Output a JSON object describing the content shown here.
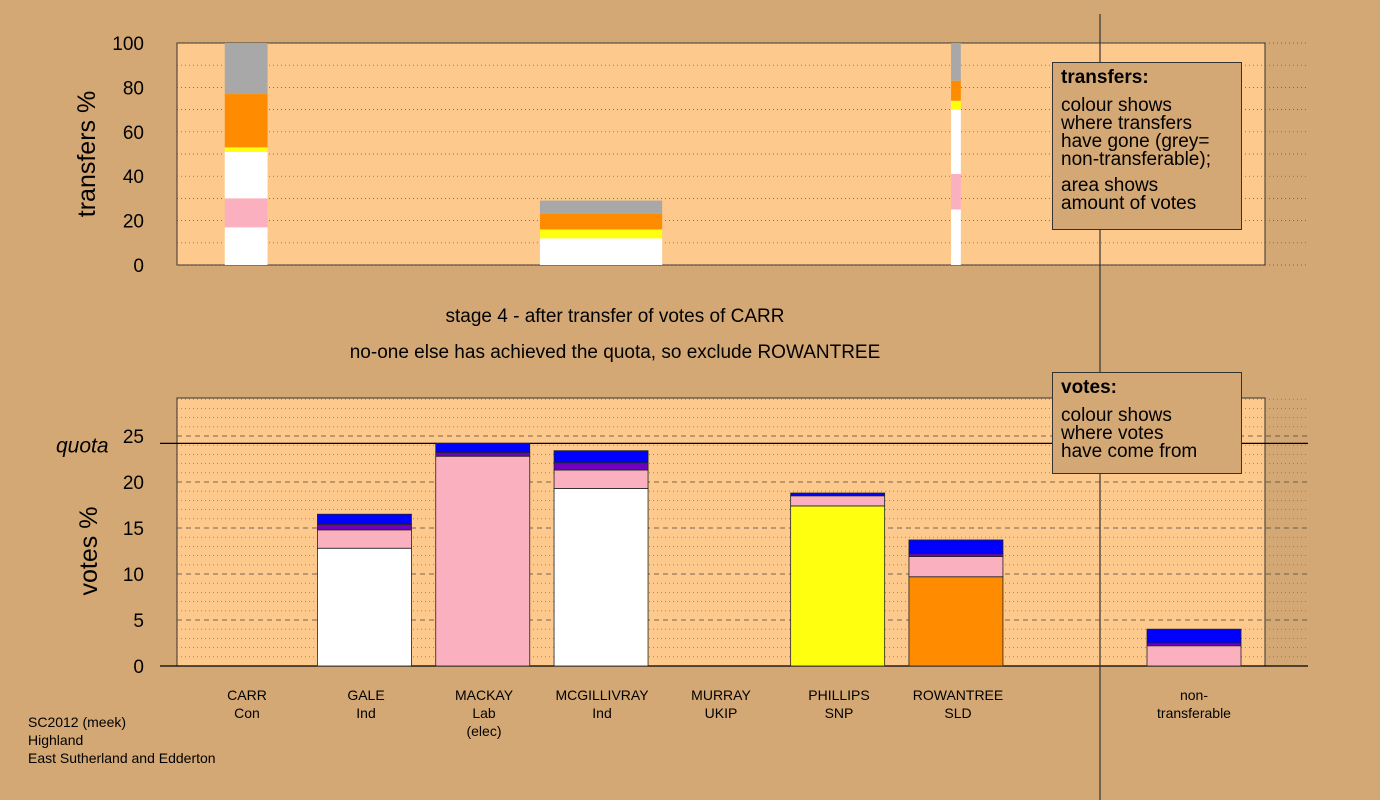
{
  "colors": {
    "background": "#d4a874",
    "plot_background": "#fdc98c",
    "white": "#ffffff",
    "pink": "#fbb0c0",
    "yellow": "#ffff10",
    "orange": "#ff8c00",
    "purple": "#7000c0",
    "blue": "#0000ff",
    "grey": "#a8a8a8"
  },
  "captions": {
    "stage": "stage 4 - after transfer of votes of CARR",
    "decision": "no-one else has achieved the quota, so exclude ROWANTREE"
  },
  "credit": {
    "line1": "SC2012 (meek)",
    "line2": "Highland",
    "line3": "East Sutherland and Edderton"
  },
  "legend_transfers": {
    "title": "transfers:",
    "lines1": [
      "colour shows",
      "where transfers",
      "have gone (grey=",
      "non-transferable);"
    ],
    "lines2": [
      "area shows",
      "amount of votes"
    ]
  },
  "legend_votes": {
    "title": "votes:",
    "lines": [
      "colour shows",
      "where votes",
      "have come from"
    ]
  },
  "candidates": [
    {
      "name": "CARR",
      "party": "Con",
      "note": ""
    },
    {
      "name": "GALE",
      "party": "Ind",
      "note": ""
    },
    {
      "name": "MACKAY",
      "party": "Lab",
      "note": "(elec)"
    },
    {
      "name": "MCGILLIVRAY",
      "party": "Ind",
      "note": ""
    },
    {
      "name": "MURRAY",
      "party": "UKIP",
      "note": ""
    },
    {
      "name": "PHILLIPS",
      "party": "SNP",
      "note": ""
    },
    {
      "name": "ROWANTREE",
      "party": "SLD",
      "note": ""
    },
    {
      "name": "non-",
      "party": "transferable",
      "note": ""
    }
  ],
  "chart_data": [
    {
      "type": "bar",
      "stacked": true,
      "ylabel": "transfers %",
      "ylim": [
        0,
        100
      ],
      "yticks": [
        0,
        20,
        40,
        60,
        80,
        100
      ],
      "categories": [
        "CARR",
        "GALE",
        "MACKAY",
        "MCGILLIVRAY",
        "MURRAY",
        "PHILLIPS",
        "ROWANTREE",
        "non-transferable"
      ],
      "bars": [
        {
          "candidate": "CARR",
          "width_share": 0.35,
          "segments": [
            {
              "color": "white",
              "from": 0,
              "to": 17
            },
            {
              "color": "pink",
              "from": 17,
              "to": 30
            },
            {
              "color": "white",
              "from": 30,
              "to": 51
            },
            {
              "color": "yellow",
              "from": 51,
              "to": 53
            },
            {
              "color": "orange",
              "from": 53,
              "to": 77
            },
            {
              "color": "grey",
              "from": 77,
              "to": 100
            }
          ]
        },
        {
          "candidate": "MCGILLIVRAY",
          "width_share": 1.0,
          "segments": [
            {
              "color": "white",
              "from": 0,
              "to": 12
            },
            {
              "color": "yellow",
              "from": 12,
              "to": 16
            },
            {
              "color": "orange",
              "from": 16,
              "to": 23
            },
            {
              "color": "grey",
              "from": 23,
              "to": 29
            }
          ]
        },
        {
          "candidate": "ROWANTREE",
          "width_share": 0.08,
          "segments": [
            {
              "color": "white",
              "from": 0,
              "to": 25
            },
            {
              "color": "pink",
              "from": 25,
              "to": 41
            },
            {
              "color": "white",
              "from": 41,
              "to": 70
            },
            {
              "color": "yellow",
              "from": 70,
              "to": 74
            },
            {
              "color": "orange",
              "from": 74,
              "to": 83
            },
            {
              "color": "grey",
              "from": 83,
              "to": 100
            }
          ]
        }
      ]
    },
    {
      "type": "bar",
      "stacked": true,
      "ylabel": "votes %",
      "ylim": [
        0,
        25
      ],
      "yticks": [
        0,
        5,
        10,
        15,
        20,
        25
      ],
      "quota": 24.2,
      "quota_label": "quota",
      "categories": [
        "CARR",
        "GALE",
        "MACKAY",
        "MCGILLIVRAY",
        "MURRAY",
        "PHILLIPS",
        "ROWANTREE",
        "non-transferable"
      ],
      "bars": [
        {
          "candidate": "CARR",
          "segments": []
        },
        {
          "candidate": "GALE",
          "segments": [
            {
              "color": "white",
              "from": 0,
              "to": 12.8
            },
            {
              "color": "pink",
              "from": 12.8,
              "to": 14.8
            },
            {
              "color": "purple",
              "from": 14.8,
              "to": 15.4
            },
            {
              "color": "blue",
              "from": 15.4,
              "to": 16.5
            }
          ]
        },
        {
          "candidate": "MACKAY",
          "segments": [
            {
              "color": "pink",
              "from": 0,
              "to": 22.8
            },
            {
              "color": "purple",
              "from": 22.8,
              "to": 23.2
            },
            {
              "color": "blue",
              "from": 23.2,
              "to": 24.2
            }
          ]
        },
        {
          "candidate": "MCGILLIVRAY",
          "segments": [
            {
              "color": "white",
              "from": 0,
              "to": 19.3
            },
            {
              "color": "pink",
              "from": 19.3,
              "to": 21.3
            },
            {
              "color": "purple",
              "from": 21.3,
              "to": 22.1
            },
            {
              "color": "blue",
              "from": 22.1,
              "to": 23.4
            }
          ]
        },
        {
          "candidate": "MURRAY",
          "segments": []
        },
        {
          "candidate": "PHILLIPS",
          "segments": [
            {
              "color": "yellow",
              "from": 0,
              "to": 17.4
            },
            {
              "color": "pink",
              "from": 17.4,
              "to": 18.5
            },
            {
              "color": "blue",
              "from": 18.5,
              "to": 18.8
            }
          ]
        },
        {
          "candidate": "ROWANTREE",
          "segments": [
            {
              "color": "orange",
              "from": 0,
              "to": 9.7
            },
            {
              "color": "pink",
              "from": 9.7,
              "to": 11.9
            },
            {
              "color": "purple",
              "from": 11.9,
              "to": 12.2
            },
            {
              "color": "blue",
              "from": 12.2,
              "to": 13.7
            }
          ]
        },
        {
          "candidate": "non-transferable",
          "segments": [
            {
              "color": "pink",
              "from": 0,
              "to": 2.2
            },
            {
              "color": "purple",
              "from": 2.2,
              "to": 2.5
            },
            {
              "color": "blue",
              "from": 2.5,
              "to": 4.0
            }
          ]
        }
      ]
    }
  ]
}
